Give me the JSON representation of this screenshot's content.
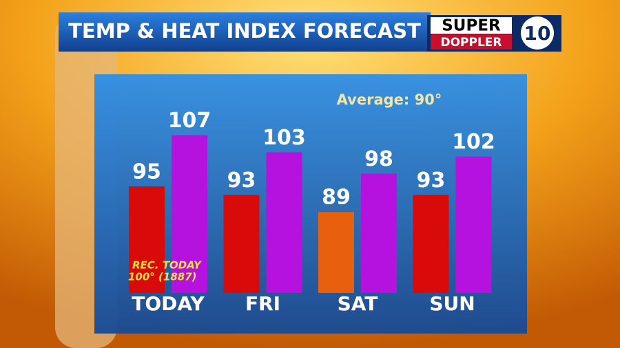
{
  "chart_data": {
    "type": "bar",
    "title": "TEMP & HEAT INDEX FORECAST",
    "logo": {
      "line1": "SUPER",
      "line2": "DOPPLER",
      "number": "10"
    },
    "annotation": "Average: 90°",
    "record_note": [
      "REC. TODAY",
      "100° (1887)"
    ],
    "categories": [
      "TODAY",
      "FRI",
      "SAT",
      "SUN"
    ],
    "series": [
      {
        "color": "#d80a0a",
        "colors": [
          "#d80a0a",
          "#d80a0a",
          "#e8600e",
          "#d80a0a"
        ],
        "values": [
          95,
          93,
          89,
          93
        ]
      },
      {
        "color": "#b512e0",
        "values": [
          107,
          103,
          98,
          102
        ]
      }
    ],
    "ylim": [
      70,
      110
    ]
  }
}
